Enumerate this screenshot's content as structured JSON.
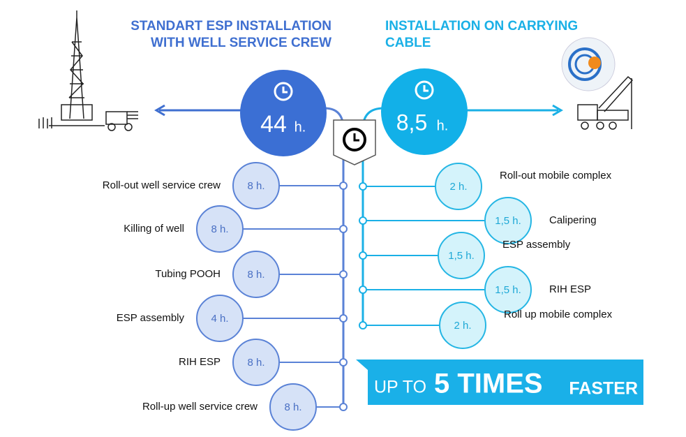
{
  "left": {
    "title": [
      "STANDART ESP INSTALLATION",
      "WITH WELL SERVICE CREW"
    ],
    "total": {
      "value": "44",
      "unit": "h."
    },
    "steps": [
      {
        "label": "Roll-out  well service crew",
        "duration": "8 h."
      },
      {
        "label": "Killing  of well",
        "duration": "8 h."
      },
      {
        "label": "Tubing  POOH",
        "duration": "8 h."
      },
      {
        "label": "ESP assembly",
        "duration": "4 h."
      },
      {
        "label": "RIH ESP",
        "duration": "8 h."
      },
      {
        "label": "Roll-up  well service crew",
        "duration": "8 h."
      }
    ]
  },
  "right": {
    "title": [
      "INSTALLATION ON CARRYING",
      "CABLE"
    ],
    "total": {
      "value": "8,5",
      "unit": "h."
    },
    "steps": [
      {
        "label": "Roll-out  mobile  complex",
        "duration": "2 h."
      },
      {
        "label": "Calipering",
        "duration": "1,5 h."
      },
      {
        "label": "ESP assembly",
        "duration": "1,5 h."
      },
      {
        "label": "RIH  ESP",
        "duration": "1,5 h."
      },
      {
        "label": "Roll  up  mobile  complex",
        "duration": "2 h."
      }
    ]
  },
  "banner": {
    "prefix": "UP TO",
    "highlight": "5 TIMES",
    "suffix": "FASTER"
  }
}
